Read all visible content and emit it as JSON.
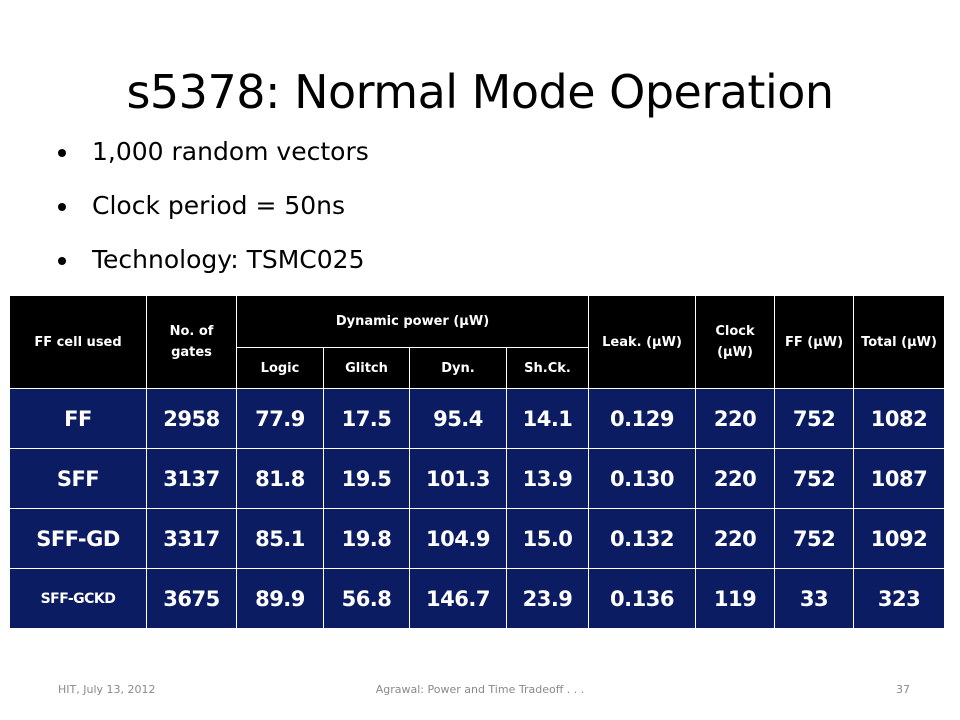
{
  "title": "s5378: Normal Mode Operation",
  "bullets": [
    "1,000 random vectors",
    "Clock period = 50ns",
    "Technology: TSMC025"
  ],
  "table": {
    "headers": {
      "ff_cell": "FF cell used",
      "gates": "No. of gates",
      "dynamic": "Dynamic power (µW)",
      "leak": "Leak. (µW)",
      "clock": "Clock (µW)",
      "ff": "FF (µW)",
      "total": "Total (µW)",
      "sub": [
        "Logic",
        "Glitch",
        "Dyn.",
        "Sh.Ck."
      ]
    },
    "rows": [
      [
        "FF",
        "2958",
        "77.9",
        "17.5",
        "95.4",
        "14.1",
        "0.129",
        "220",
        "752",
        "1082"
      ],
      [
        "SFF",
        "3137",
        "81.8",
        "19.5",
        "101.3",
        "13.9",
        "0.130",
        "220",
        "752",
        "1087"
      ],
      [
        "SFF-GD",
        "3317",
        "85.1",
        "19.8",
        "104.9",
        "15.0",
        "0.132",
        "220",
        "752",
        "1092"
      ],
      [
        "SFF-GCKD",
        "3675",
        "89.9",
        "56.8",
        "146.7",
        "23.9",
        "0.136",
        "119",
        "33",
        "323"
      ]
    ]
  },
  "footer": {
    "left": "HIT, July 13, 2012",
    "center": "Agrawal: Power and Time Tradeoff . . .",
    "page": "37"
  },
  "colors": {
    "header_bg": "#000000",
    "body_bg": "#0c1c62",
    "text_on_table": "#ffffff"
  }
}
